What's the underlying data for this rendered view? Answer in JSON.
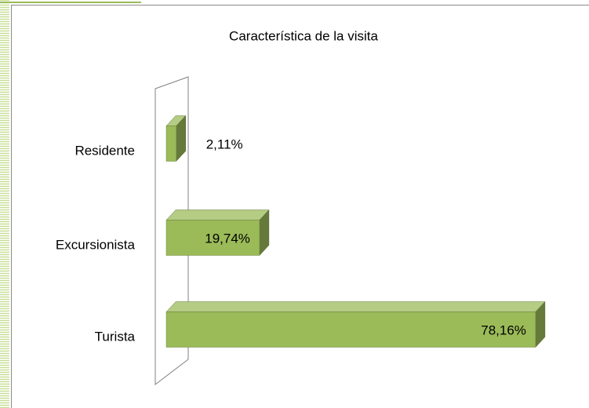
{
  "chart_data": {
    "type": "bar",
    "orientation": "horizontal",
    "title": "Característica de la visita",
    "categories": [
      "Residente",
      "Excursionista",
      "Turista"
    ],
    "values": [
      2.11,
      19.74,
      78.16
    ],
    "value_labels": [
      "2,11%",
      "19,74%",
      "78,16%"
    ],
    "color": "#9bbb59",
    "xlim": [
      0,
      80
    ]
  }
}
